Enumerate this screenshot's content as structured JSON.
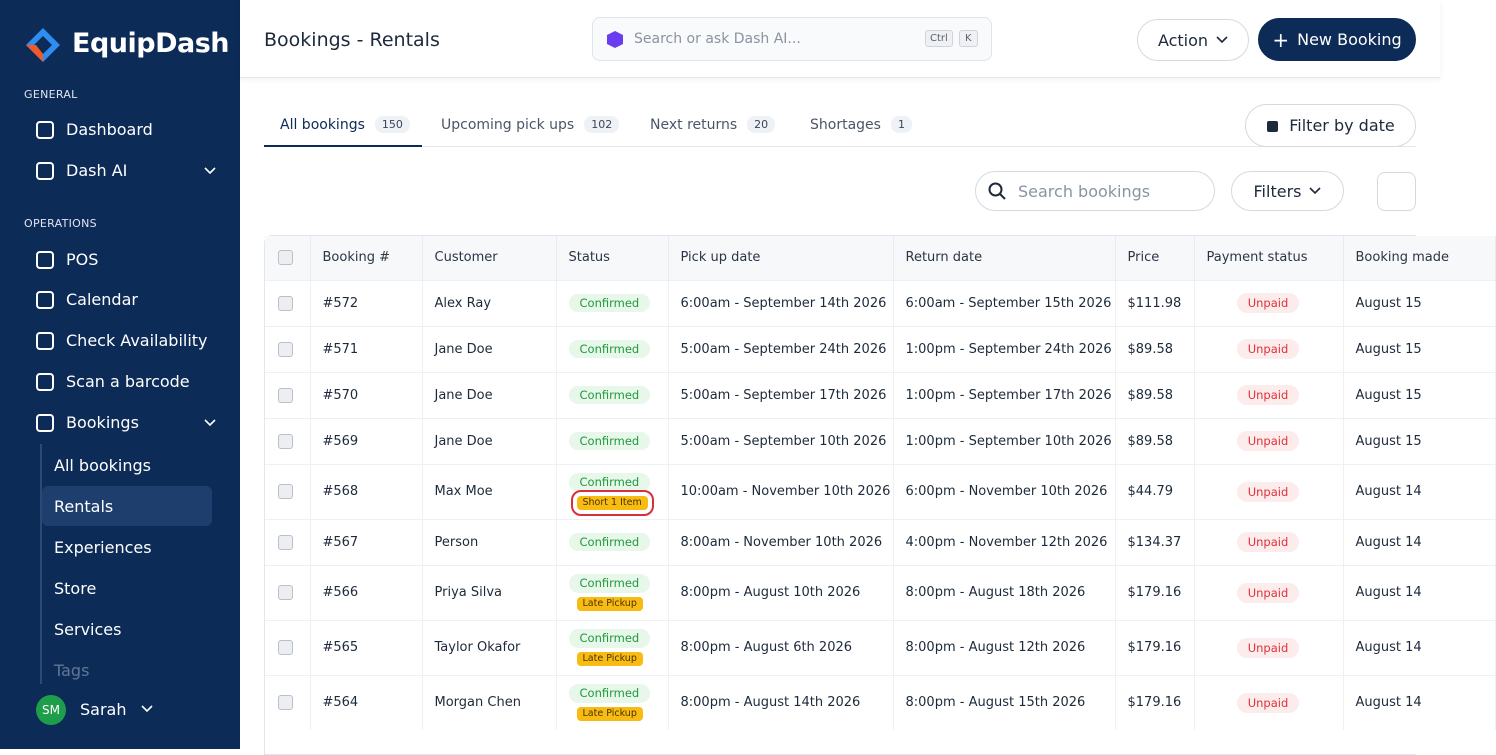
{
  "sidebar": {
    "brand": "EquipDash",
    "sections": [
      {
        "heading": "GENERAL",
        "items": [
          {
            "label": "Dashboard"
          },
          {
            "label": "Dash AI",
            "expandable": true
          }
        ]
      },
      {
        "heading": "OPERATIONS",
        "items": [
          {
            "label": "POS"
          },
          {
            "label": "Calendar"
          },
          {
            "label": "Check Availability"
          },
          {
            "label": "Scan a barcode"
          },
          {
            "label": "Bookings",
            "expandable": true
          }
        ]
      }
    ],
    "sub_items": [
      "All bookings",
      "Rentals",
      "Experiences",
      "Store",
      "Services",
      "Tags"
    ],
    "active_sub_item": 1,
    "user": {
      "initials": "SM",
      "name": "Sarah"
    }
  },
  "header": {
    "title": "Bookings - Rentals",
    "search_placeholder": "Search or ask Dash AI...",
    "shortcut": [
      "Ctrl",
      "K"
    ],
    "action": "Action",
    "new_booking": "New Booking"
  },
  "tabs": [
    {
      "label": "All bookings",
      "count": 150
    },
    {
      "label": "Upcoming pick ups",
      "count": 102
    },
    {
      "label": "Next returns",
      "count": 20
    },
    {
      "label": "Shortages",
      "count": 1
    }
  ],
  "active_tab": 0,
  "filter_by_date": "Filter by date",
  "search_bookings": "Search bookings",
  "filters": "Filters",
  "table": {
    "columns": [
      "Booking #",
      "Customer",
      "Status",
      "Pick up date",
      "Return date",
      "Price",
      "Payment status",
      "Booking made"
    ],
    "rows": [
      [
        "#572",
        "Alex Ray",
        "Confirmed",
        "6:00am - September 14th 2026",
        "6:00am - September 15th 2026",
        "$111.98",
        "Unpaid",
        "August 15"
      ],
      [
        "#571",
        "Jane Doe",
        "Confirmed",
        "5:00am - September 24th 2026",
        "1:00pm - September 24th 2026",
        "$89.58",
        "Unpaid",
        "August 15"
      ],
      [
        "#570",
        "Jane Doe",
        "Confirmed",
        "5:00am - September 17th 2026",
        "1:00pm - September 17th 2026",
        "$89.58",
        "Unpaid",
        "August 15"
      ],
      [
        "#569",
        "Jane Doe",
        "Confirmed",
        "5:00am - September 10th 2026",
        "1:00pm - September 10th 2026",
        "$89.58",
        "Unpaid",
        "August 15"
      ],
      [
        "#568",
        "Max Moe",
        "Confirmed",
        "10:00am - November 10th 2026",
        "6:00pm - November 10th 2026",
        "$44.79",
        "Unpaid",
        "August 14",
        "Short 1 Item"
      ],
      [
        "#567",
        "Person",
        "Confirmed",
        "8:00am - November 10th 2026",
        "4:00pm - November 12th 2026",
        "$134.37",
        "Unpaid",
        "August 14"
      ],
      [
        "#566",
        "Priya Silva",
        "Confirmed",
        "8:00pm - August 10th 2026",
        "8:00pm - August 18th 2026",
        "$179.16",
        "Unpaid",
        "August 14",
        "Late Pickup"
      ],
      [
        "#565",
        "Taylor Okafor",
        "Confirmed",
        "8:00pm - August 6th 2026",
        "8:00pm - August 12th 2026",
        "$179.16",
        "Unpaid",
        "August 14",
        "Late Pickup"
      ],
      [
        "#564",
        "Morgan Chen",
        "Confirmed",
        "8:00pm - August 14th 2026",
        "8:00pm - August 15th 2026",
        "$179.16",
        "Unpaid",
        "August 14",
        "Late Pickup"
      ]
    ],
    "highlighted_row": 4
  }
}
